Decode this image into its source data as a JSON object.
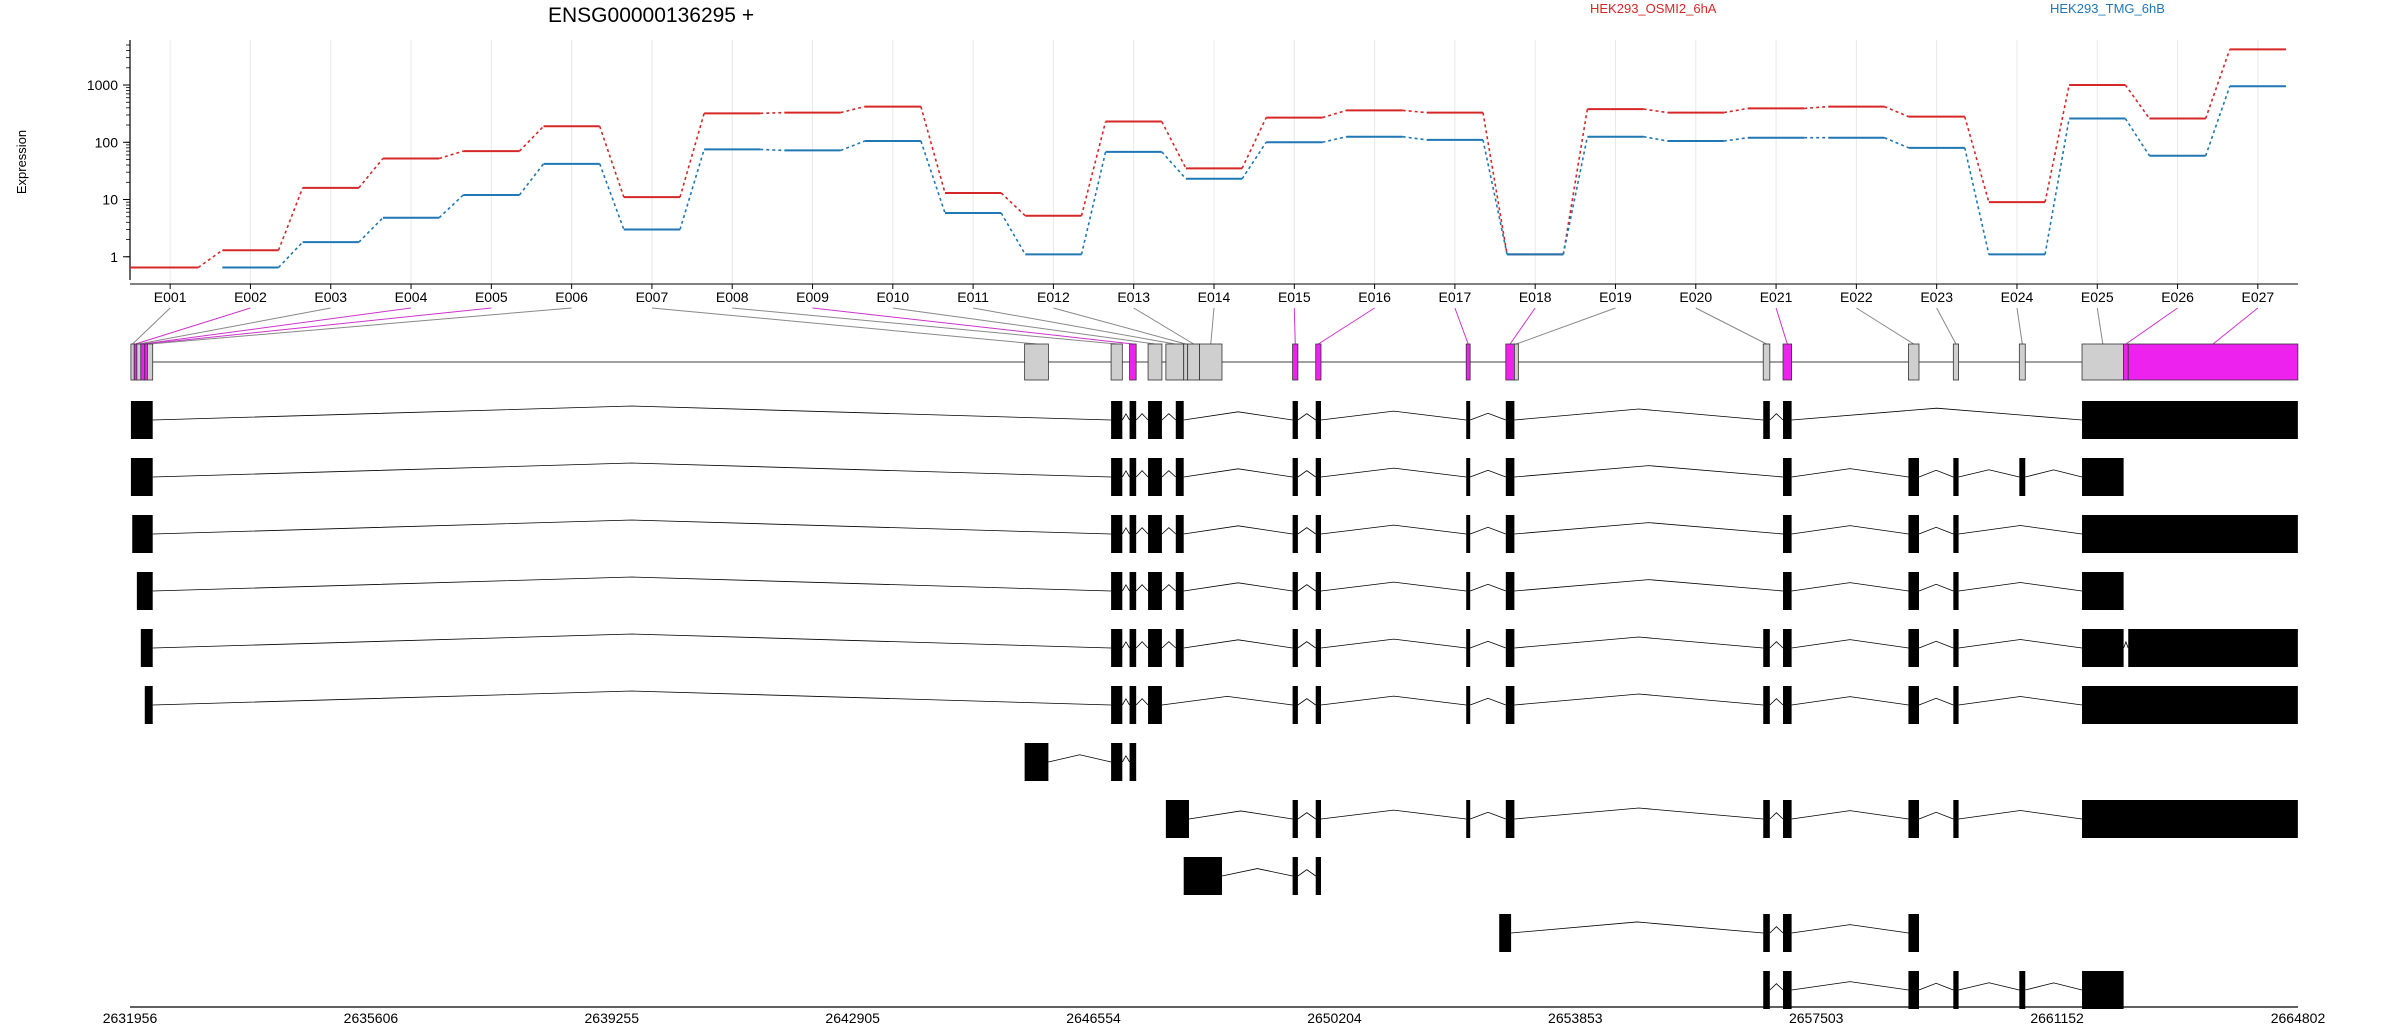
{
  "chart_data": {
    "type": "line",
    "title": "ENSG00000136295 +",
    "ylabel": "Expression",
    "yscale": "log",
    "yticks": [
      "1",
      "10",
      "100",
      "1000"
    ],
    "ylim": [
      0.5,
      5000
    ],
    "grid": true,
    "legend_position": "top",
    "x": [
      "E001",
      "E002",
      "E003",
      "E004",
      "E005",
      "E006",
      "E007",
      "E008",
      "E009",
      "E010",
      "E011",
      "E012",
      "E013",
      "E014",
      "E015",
      "E016",
      "E017",
      "E018",
      "E019",
      "E020",
      "E021",
      "E022",
      "E023",
      "E024",
      "E025",
      "E026",
      "E027"
    ],
    "series": [
      {
        "name": "HEK293_OSMI2_6hA",
        "color": "#d62728",
        "values": [
          0.65,
          1.3,
          16,
          52,
          70,
          190,
          11,
          320,
          330,
          420,
          13,
          5.2,
          230,
          35,
          270,
          360,
          330,
          1.1,
          380,
          330,
          390,
          420,
          280,
          9,
          1000,
          260,
          4200
        ]
      },
      {
        "name": "HEK293_TMG_6hB",
        "color": "#1f77b4",
        "values": [
          null,
          0.65,
          1.8,
          4.8,
          12,
          42,
          3,
          75,
          72,
          105,
          5.8,
          1.1,
          68,
          23,
          100,
          125,
          110,
          1.1,
          125,
          105,
          120,
          120,
          80,
          1.1,
          260,
          58,
          950
        ]
      }
    ],
    "genome_axis": {
      "ticks": [
        "2631956",
        "2635606",
        "2639255",
        "2642905",
        "2646554",
        "2650204",
        "2653853",
        "2657503",
        "2661152",
        "2664802"
      ],
      "start": 2631956,
      "end": 2664802
    },
    "gene_model": {
      "exons": [
        {
          "id": "E001",
          "start": 2631970,
          "end": 2632020,
          "highlight": false
        },
        {
          "id": "E002",
          "start": 2632020,
          "end": 2632060,
          "highlight": true
        },
        {
          "id": "E003",
          "start": 2632060,
          "end": 2632120,
          "highlight": false
        },
        {
          "id": "E004",
          "start": 2632120,
          "end": 2632180,
          "highlight": true
        },
        {
          "id": "E005",
          "start": 2632180,
          "end": 2632220,
          "highlight": true
        },
        {
          "id": "E006",
          "start": 2632220,
          "end": 2632300,
          "highlight": false
        },
        {
          "id": "E007",
          "start": 2645510,
          "end": 2645870,
          "highlight": false
        },
        {
          "id": "E008",
          "start": 2646820,
          "end": 2646990,
          "highlight": false
        },
        {
          "id": "E009",
          "start": 2647100,
          "end": 2647200,
          "highlight": true
        },
        {
          "id": "E010",
          "start": 2647380,
          "end": 2647590,
          "highlight": false
        },
        {
          "id": "E011",
          "start": 2647650,
          "end": 2647920,
          "highlight": false
        },
        {
          "id": "E012",
          "start": 2647920,
          "end": 2647980,
          "highlight": false
        },
        {
          "id": "E013",
          "start": 2647980,
          "end": 2648160,
          "highlight": false
        },
        {
          "id": "E014",
          "start": 2648160,
          "end": 2648500,
          "highlight": false
        },
        {
          "id": "E015",
          "start": 2649570,
          "end": 2649650,
          "highlight": true
        },
        {
          "id": "E016",
          "start": 2649920,
          "end": 2650000,
          "highlight": true
        },
        {
          "id": "E017",
          "start": 2652200,
          "end": 2652260,
          "highlight": true
        },
        {
          "id": "E018",
          "start": 2652800,
          "end": 2652930,
          "highlight": true
        },
        {
          "id": "E019",
          "start": 2652930,
          "end": 2652990,
          "highlight": false
        },
        {
          "id": "E020",
          "start": 2656700,
          "end": 2656800,
          "highlight": false
        },
        {
          "id": "E021",
          "start": 2657000,
          "end": 2657130,
          "highlight": true
        },
        {
          "id": "E022",
          "start": 2658900,
          "end": 2659060,
          "highlight": false
        },
        {
          "id": "E023",
          "start": 2659580,
          "end": 2659660,
          "highlight": false
        },
        {
          "id": "E024",
          "start": 2660580,
          "end": 2660670,
          "highlight": false
        },
        {
          "id": "E025",
          "start": 2661530,
          "end": 2662160,
          "highlight": false
        },
        {
          "id": "E026",
          "start": 2662160,
          "end": 2662230,
          "highlight": true
        },
        {
          "id": "E027",
          "start": 2662230,
          "end": 2664800,
          "highlight": true
        }
      ],
      "transcripts": [
        [
          [
            2631970,
            2632300
          ],
          [
            2646820,
            2646990
          ],
          [
            2647100,
            2647200
          ],
          [
            2647380,
            2647590
          ],
          [
            2647800,
            2647920
          ],
          [
            2649570,
            2649650
          ],
          [
            2649920,
            2650000
          ],
          [
            2652200,
            2652260
          ],
          [
            2652800,
            2652930
          ],
          [
            2656700,
            2656800
          ],
          [
            2657000,
            2657130
          ],
          [
            2661530,
            2664800
          ]
        ],
        [
          [
            2631970,
            2632300
          ],
          [
            2646820,
            2646990
          ],
          [
            2647100,
            2647200
          ],
          [
            2647380,
            2647590
          ],
          [
            2647800,
            2647920
          ],
          [
            2649570,
            2649650
          ],
          [
            2649920,
            2650000
          ],
          [
            2652200,
            2652260
          ],
          [
            2652800,
            2652930
          ],
          [
            2657000,
            2657130
          ],
          [
            2658900,
            2659060
          ],
          [
            2659580,
            2659660
          ],
          [
            2660580,
            2660670
          ],
          [
            2661530,
            2662160
          ]
        ],
        [
          [
            2631990,
            2632300
          ],
          [
            2646820,
            2646990
          ],
          [
            2647100,
            2647200
          ],
          [
            2647380,
            2647590
          ],
          [
            2647800,
            2647920
          ],
          [
            2649570,
            2649650
          ],
          [
            2649920,
            2650000
          ],
          [
            2652200,
            2652260
          ],
          [
            2652800,
            2652930
          ],
          [
            2657000,
            2657130
          ],
          [
            2658900,
            2659060
          ],
          [
            2659580,
            2659660
          ],
          [
            2661530,
            2664800
          ]
        ],
        [
          [
            2632060,
            2632300
          ],
          [
            2646820,
            2646990
          ],
          [
            2647100,
            2647200
          ],
          [
            2647380,
            2647590
          ],
          [
            2647800,
            2647920
          ],
          [
            2649570,
            2649650
          ],
          [
            2649920,
            2650000
          ],
          [
            2652200,
            2652260
          ],
          [
            2652800,
            2652930
          ],
          [
            2657000,
            2657130
          ],
          [
            2658900,
            2659060
          ],
          [
            2659580,
            2659660
          ],
          [
            2661530,
            2662160
          ]
        ],
        [
          [
            2632120,
            2632300
          ],
          [
            2646820,
            2646990
          ],
          [
            2647100,
            2647200
          ],
          [
            2647380,
            2647590
          ],
          [
            2647800,
            2647920
          ],
          [
            2649570,
            2649650
          ],
          [
            2649920,
            2650000
          ],
          [
            2652200,
            2652260
          ],
          [
            2652800,
            2652930
          ],
          [
            2656700,
            2656800
          ],
          [
            2657000,
            2657130
          ],
          [
            2658900,
            2659060
          ],
          [
            2659580,
            2659660
          ],
          [
            2661530,
            2662160
          ],
          [
            2662230,
            2664800
          ]
        ],
        [
          [
            2632180,
            2632300
          ],
          [
            2646820,
            2646990
          ],
          [
            2647100,
            2647200
          ],
          [
            2647380,
            2647590
          ],
          [
            2649570,
            2649650
          ],
          [
            2649920,
            2650000
          ],
          [
            2652200,
            2652260
          ],
          [
            2652800,
            2652930
          ],
          [
            2656700,
            2656800
          ],
          [
            2657000,
            2657130
          ],
          [
            2658900,
            2659060
          ],
          [
            2659580,
            2659660
          ],
          [
            2661530,
            2664800
          ]
        ],
        [
          [
            2645510,
            2645870
          ],
          [
            2646820,
            2646990
          ],
          [
            2647100,
            2647200
          ]
        ],
        [
          [
            2647650,
            2648000
          ],
          [
            2649570,
            2649650
          ],
          [
            2649920,
            2650000
          ],
          [
            2652200,
            2652260
          ],
          [
            2652800,
            2652930
          ],
          [
            2656700,
            2656800
          ],
          [
            2657000,
            2657130
          ],
          [
            2658900,
            2659060
          ],
          [
            2659580,
            2659660
          ],
          [
            2661530,
            2664800
          ]
        ],
        [
          [
            2647920,
            2648500
          ],
          [
            2649570,
            2649650
          ],
          [
            2649920,
            2650000
          ]
        ],
        [
          [
            2652700,
            2652880
          ],
          [
            2656700,
            2656800
          ],
          [
            2657000,
            2657130
          ],
          [
            2658900,
            2659060
          ]
        ],
        [
          [
            2656700,
            2656800
          ],
          [
            2657000,
            2657130
          ],
          [
            2658900,
            2659060
          ],
          [
            2659580,
            2659660
          ],
          [
            2660580,
            2660670
          ],
          [
            2661530,
            2662160
          ]
        ]
      ]
    }
  }
}
